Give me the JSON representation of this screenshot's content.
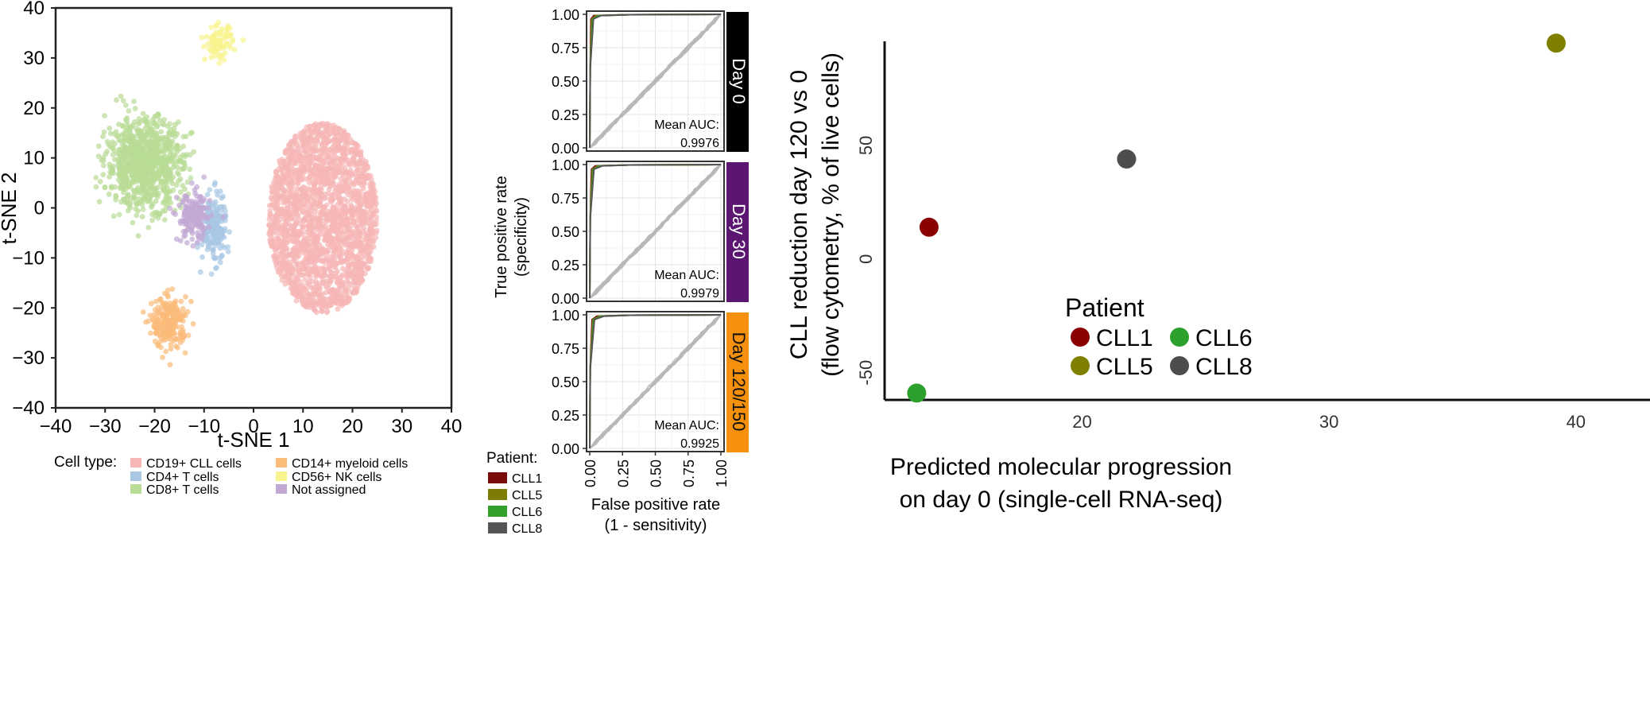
{
  "chart_data": [
    {
      "type": "scatter",
      "id": "tsne",
      "xlabel": "t-SNE 1",
      "ylabel": "t-SNE 2",
      "xlim": [
        -40,
        40
      ],
      "ylim": [
        -40,
        40
      ],
      "xticks": [
        "−40",
        "−30",
        "−20",
        "−10",
        "0",
        "10",
        "20",
        "30",
        "40"
      ],
      "yticks": [
        "40",
        "30",
        "20",
        "10",
        "0",
        "−10",
        "−20",
        "−30",
        "−40"
      ],
      "grid": false,
      "legend_title": "Cell type:",
      "legend_position": "bottom",
      "clusters": [
        {
          "name": "CD19+ CLL cells",
          "color": "#f7b6b6",
          "center": [
            14,
            -2
          ],
          "spread": [
            11,
            19
          ],
          "count": 2200
        },
        {
          "name": "CD4+ T cells",
          "color": "#a8c8e4",
          "center": [
            -8,
            -4
          ],
          "spread": [
            2.2,
            6
          ],
          "count": 220
        },
        {
          "name": "CD8+ T cells",
          "color": "#b9dc96",
          "center": [
            -22,
            9
          ],
          "spread": [
            7,
            8
          ],
          "count": 900
        },
        {
          "name": "CD14+ myeloid cells",
          "color": "#fbbb79",
          "center": [
            -17,
            -23
          ],
          "spread": [
            3.2,
            4.5
          ],
          "count": 240
        },
        {
          "name": "CD56+ NK cells",
          "color": "#f8f48e",
          "center": [
            -7,
            33
          ],
          "spread": [
            2.5,
            3
          ],
          "count": 90
        },
        {
          "name": "Not assigned",
          "color": "#c2a8d4",
          "center": [
            -12,
            -2
          ],
          "spread": [
            3,
            4.5
          ],
          "count": 170
        }
      ]
    },
    {
      "type": "line",
      "id": "roc",
      "xlabel": "False positive rate",
      "xlabel2": "(1 - sensitivity)",
      "ylabel": "True positive rate",
      "ylabel2": "(specificity)",
      "xlim": [
        0,
        1
      ],
      "ylim": [
        0,
        1
      ],
      "ticks": [
        "0.00",
        "0.25",
        "0.50",
        "0.75",
        "1.00"
      ],
      "legend_title": "Patient:",
      "legend": [
        {
          "name": "CLL1",
          "color": "#7a0c0c"
        },
        {
          "name": "CLL5",
          "color": "#7d7d06"
        },
        {
          "name": "CLL6",
          "color": "#33a02c"
        },
        {
          "name": "CLL8",
          "color": "#555555"
        }
      ],
      "panels": [
        {
          "strip": "Day 0",
          "strip_color": "#000000",
          "auc_label": "Mean AUC:",
          "auc": "0.9976"
        },
        {
          "strip": "Day 30",
          "strip_color": "#5a1670",
          "auc_label": "Mean AUC:",
          "auc": "0.9979"
        },
        {
          "strip": "Day 120/150",
          "strip_color": "#f4900c",
          "auc_label": "Mean AUC:",
          "auc": "0.9925"
        }
      ]
    },
    {
      "type": "scatter",
      "id": "progression",
      "xlabel": "Predicted molecular progression",
      "xlabel2": "on day 0 (single-cell RNA-seq)",
      "ylabel": "CLL reduction day 120 vs 0",
      "ylabel2": "(flow cytometry, % of live cells)",
      "xlim": [
        12,
        43
      ],
      "ylim": [
        -62,
        100
      ],
      "xticks": [
        20,
        30,
        40
      ],
      "yticks": [
        50,
        0,
        -50
      ],
      "legend_title": "Patient",
      "legend_position": "bottom-right",
      "points": [
        {
          "name": "CLL1",
          "x": 13.8,
          "y": 14,
          "color": "#8b0000"
        },
        {
          "name": "CLL5",
          "x": 39.2,
          "y": 95,
          "color": "#808000"
        },
        {
          "name": "CLL6",
          "x": 13.3,
          "y": -59,
          "color": "#2ca02c"
        },
        {
          "name": "CLL8",
          "x": 21.8,
          "y": 44,
          "color": "#4d4d4d"
        }
      ]
    }
  ]
}
